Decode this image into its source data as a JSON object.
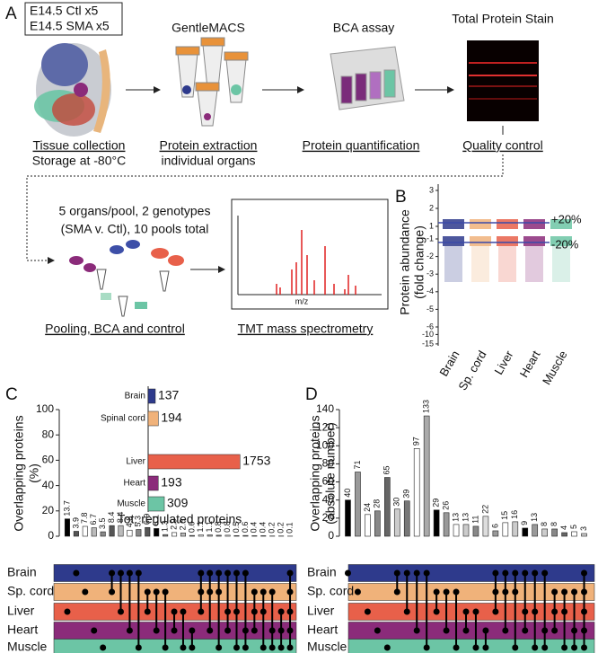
{
  "panel_a": {
    "label": "A",
    "samples": [
      "E14.5 Ctl x5",
      "E14.5 SMA x5"
    ],
    "tissue": {
      "caption": "Tissue collection",
      "subcaption": "Storage at -80°C"
    },
    "extraction": {
      "title": "GentleMACS",
      "caption": "Protein extraction",
      "subcaption": "individual organs"
    },
    "bca": {
      "title": "BCA assay",
      "caption": "Protein quantification"
    },
    "stain": {
      "title": "Total Protein Stain",
      "caption": "Quality control"
    },
    "pooling": {
      "text": [
        "5 organs/pool, 2 genotypes",
        "(SMA v. Ctl), 10 pools total"
      ],
      "caption": "Pooling, BCA and control"
    },
    "ms": {
      "axis_label": "m/z",
      "caption": "TMT mass spectrometry"
    }
  },
  "chart_data": [
    {
      "panel": "B",
      "type": "strip",
      "y_label": [
        "Protein abundance",
        "(fold change)"
      ],
      "categories": [
        "Brain",
        "Sp. cord",
        "Liver",
        "Heart",
        "Muscle"
      ],
      "colors": [
        "#2e3a8c",
        "#f0b27a",
        "#e8604a",
        "#8b2b7a",
        "#6cc5a5"
      ],
      "yticks": [
        3,
        2,
        1,
        -1,
        -2,
        -3,
        -4,
        -5,
        -6,
        -10,
        -15
      ],
      "reference_lines": [
        {
          "value": 1.2,
          "label": "+20%"
        },
        {
          "value": -1.2,
          "label": "-20%"
        }
      ],
      "line_color": "#3b4aa8"
    },
    {
      "panel": "C",
      "type": "upset",
      "y_label": [
        "Overlapping proteins",
        "(%)"
      ],
      "ylim": [
        0,
        100
      ],
      "yticks": [
        0,
        20,
        40,
        60,
        80,
        100
      ],
      "values": [
        13.7,
        3.9,
        7.8,
        6.7,
        3.5,
        8.4,
        8.4,
        4.8,
        5.3,
        6.9,
        6.1,
        1.3,
        2.9,
        2.6,
        0.6,
        1.1,
        1.1,
        0.8,
        0.8,
        0.5,
        0.6,
        0.4,
        0.4,
        0.2,
        0.2,
        0.1
      ],
      "colors": [
        "#000000",
        "#555555",
        "#ffffff",
        "#bbbbbb",
        "#888888",
        "#555555",
        "#bbbbbb",
        "#ffffff",
        "#888888",
        "#555555",
        "#000000",
        "#888888",
        "#ffffff",
        "#bbbbbb",
        "#888888",
        "#ffffff",
        "#bbbbbb",
        "#888888",
        "#ffffff",
        "#bbbbbb",
        "#888888",
        "#ffffff",
        "#bbbbbb",
        "#888888",
        "#ffffff",
        "#bbbbbb"
      ],
      "sets": [
        "Brain",
        "Sp. cord",
        "Liver",
        "Heart",
        "Muscle"
      ],
      "set_colors": [
        "#2e3a8c",
        "#f0b27a",
        "#e8604a",
        "#8b2b7a",
        "#6cc5a5"
      ],
      "combinations": [
        [
          2
        ],
        [
          0
        ],
        [
          1
        ],
        [
          3
        ],
        [
          4
        ],
        [
          0,
          1
        ],
        [
          0,
          2
        ],
        [
          0,
          3
        ],
        [
          0,
          4
        ],
        [
          1,
          2
        ],
        [
          1,
          3
        ],
        [
          1,
          4
        ],
        [
          2,
          3
        ],
        [
          2,
          4
        ],
        [
          3,
          4
        ],
        [
          0,
          1,
          2
        ],
        [
          0,
          1,
          3
        ],
        [
          0,
          1,
          4
        ],
        [
          0,
          2,
          3
        ],
        [
          0,
          2,
          4
        ],
        [
          0,
          3,
          4
        ],
        [
          1,
          2,
          3
        ],
        [
          1,
          2,
          4
        ],
        [
          1,
          3,
          4
        ],
        [
          2,
          3,
          4
        ],
        [
          0,
          1,
          2,
          3,
          4
        ]
      ]
    },
    {
      "panel": "C",
      "type": "bar",
      "orientation": "horizontal",
      "x_label": "Tot. regulated proteins",
      "xlim": [
        0,
        1800
      ],
      "categories": [
        "Brain",
        "Spinal cord",
        "Liver",
        "Heart",
        "Muscle"
      ],
      "values": [
        137,
        194,
        1753,
        193,
        309
      ],
      "colors": [
        "#2e3a8c",
        "#f0b27a",
        "#e8604a",
        "#8b2b7a",
        "#6cc5a5"
      ]
    },
    {
      "panel": "D",
      "type": "upset",
      "y_label": [
        "Overlapping proteins",
        "(absolute number)"
      ],
      "ylim": [
        0,
        140
      ],
      "yticks": [
        0,
        20,
        40,
        60,
        80,
        100,
        120,
        140
      ],
      "values": [
        40,
        71,
        24,
        28,
        65,
        30,
        39,
        97,
        133,
        29,
        26,
        13,
        13,
        11,
        22,
        6,
        15,
        16,
        9,
        13,
        8,
        8,
        4,
        5,
        3
      ],
      "colors": [
        "#000000",
        "#999999",
        "#ffffff",
        "#888888",
        "#666666",
        "#cccccc",
        "#777777",
        "#ffffff",
        "#aaaaaa",
        "#000000",
        "#999999",
        "#ffffff",
        "#cccccc",
        "#888888",
        "#dddddd",
        "#999999",
        "#ffffff",
        "#cccccc",
        "#000000",
        "#999999",
        "#cccccc",
        "#888888",
        "#666666",
        "#ffffff",
        "#cccccc"
      ],
      "sets": [
        "Brain",
        "Sp. cord",
        "Liver",
        "Heart",
        "Muscle"
      ],
      "set_colors": [
        "#2e3a8c",
        "#f0b27a",
        "#e8604a",
        "#8b2b7a",
        "#6cc5a5"
      ],
      "combinations": [
        [
          0
        ],
        [
          1
        ],
        [
          2
        ],
        [
          3
        ],
        [
          4
        ],
        [
          0,
          1
        ],
        [
          0,
          2
        ],
        [
          0,
          3
        ],
        [
          0,
          4
        ],
        [
          1,
          2
        ],
        [
          1,
          3
        ],
        [
          1,
          4
        ],
        [
          2,
          3
        ],
        [
          2,
          4
        ],
        [
          3,
          4
        ],
        [
          0,
          1,
          2
        ],
        [
          0,
          1,
          3
        ],
        [
          0,
          1,
          4
        ],
        [
          0,
          2,
          3
        ],
        [
          0,
          2,
          4
        ],
        [
          0,
          3,
          4
        ],
        [
          1,
          2,
          3
        ],
        [
          1,
          2,
          4
        ],
        [
          1,
          3,
          4
        ],
        [
          0,
          1,
          2,
          3,
          4
        ]
      ]
    }
  ]
}
